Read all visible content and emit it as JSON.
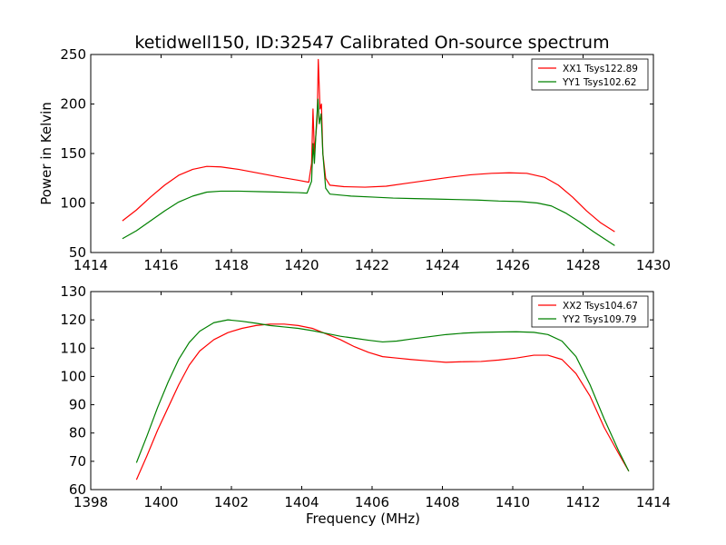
{
  "title": "ketidwell150, ID:32547 Calibrated On-source spectrum",
  "chart_data": [
    {
      "type": "line",
      "title": "ketidwell150, ID:32547 Calibrated On-source spectrum",
      "xlabel": "",
      "ylabel": "Power in Kelvin",
      "xlim": [
        1414,
        1430
      ],
      "ylim": [
        50,
        250
      ],
      "xticks": [
        1414,
        1416,
        1418,
        1420,
        1422,
        1424,
        1426,
        1428,
        1430
      ],
      "yticks": [
        50,
        100,
        150,
        200,
        250
      ],
      "grid": false,
      "legend_position": "top-right",
      "series": [
        {
          "name": "XX1 Tsys122.89",
          "color": "#ff0000",
          "points": [
            [
              1414.9,
              82
            ],
            [
              1415.3,
              93
            ],
            [
              1415.7,
              106
            ],
            [
              1416.1,
              118
            ],
            [
              1416.5,
              128
            ],
            [
              1416.9,
              134
            ],
            [
              1417.3,
              137
            ],
            [
              1417.7,
              136.5
            ],
            [
              1418.2,
              134
            ],
            [
              1418.8,
              130
            ],
            [
              1419.4,
              126
            ],
            [
              1419.9,
              123
            ],
            [
              1420.2,
              121
            ],
            [
              1420.28,
              140
            ],
            [
              1420.32,
              195
            ],
            [
              1420.36,
              150
            ],
            [
              1420.4,
              168
            ],
            [
              1420.44,
              185
            ],
            [
              1420.47,
              245
            ],
            [
              1420.52,
              195
            ],
            [
              1420.56,
              200
            ],
            [
              1420.6,
              150
            ],
            [
              1420.68,
              125
            ],
            [
              1420.8,
              118
            ],
            [
              1421.2,
              116.5
            ],
            [
              1421.8,
              116
            ],
            [
              1422.4,
              117
            ],
            [
              1423.0,
              120
            ],
            [
              1423.6,
              123
            ],
            [
              1424.2,
              126
            ],
            [
              1424.8,
              128.5
            ],
            [
              1425.4,
              130
            ],
            [
              1425.9,
              130.5
            ],
            [
              1426.4,
              130
            ],
            [
              1426.9,
              126
            ],
            [
              1427.3,
              118
            ],
            [
              1427.7,
              106
            ],
            [
              1428.1,
              92
            ],
            [
              1428.5,
              80
            ],
            [
              1428.9,
              71
            ]
          ]
        },
        {
          "name": "YY1 Tsys102.62",
          "color": "#008000",
          "points": [
            [
              1414.9,
              64
            ],
            [
              1415.3,
              72
            ],
            [
              1415.7,
              82
            ],
            [
              1416.1,
              92
            ],
            [
              1416.5,
              101
            ],
            [
              1416.9,
              107
            ],
            [
              1417.3,
              111
            ],
            [
              1417.7,
              112
            ],
            [
              1418.2,
              112
            ],
            [
              1418.8,
              111.5
            ],
            [
              1419.4,
              111
            ],
            [
              1419.9,
              110.5
            ],
            [
              1420.15,
              110
            ],
            [
              1420.28,
              122
            ],
            [
              1420.32,
              160
            ],
            [
              1420.36,
              140
            ],
            [
              1420.41,
              175
            ],
            [
              1420.46,
              205
            ],
            [
              1420.5,
              180
            ],
            [
              1420.55,
              190
            ],
            [
              1420.6,
              150
            ],
            [
              1420.68,
              115
            ],
            [
              1420.8,
              109
            ],
            [
              1421.4,
              107
            ],
            [
              1422.0,
              106
            ],
            [
              1422.6,
              105
            ],
            [
              1423.2,
              104.5
            ],
            [
              1423.8,
              104
            ],
            [
              1424.4,
              103.5
            ],
            [
              1425.0,
              103
            ],
            [
              1425.6,
              102
            ],
            [
              1426.2,
              101.5
            ],
            [
              1426.7,
              100
            ],
            [
              1427.1,
              97
            ],
            [
              1427.5,
              90
            ],
            [
              1427.9,
              81
            ],
            [
              1428.3,
              71
            ],
            [
              1428.6,
              64
            ],
            [
              1428.9,
              57
            ]
          ]
        }
      ]
    },
    {
      "type": "line",
      "title": "",
      "xlabel": "Frequency (MHz)",
      "ylabel": "",
      "xlim": [
        1398,
        1414
      ],
      "ylim": [
        60,
        130
      ],
      "xticks": [
        1398,
        1400,
        1402,
        1404,
        1406,
        1408,
        1410,
        1412,
        1414
      ],
      "yticks": [
        60,
        70,
        80,
        90,
        100,
        110,
        120,
        130
      ],
      "grid": false,
      "legend_position": "top-right",
      "series": [
        {
          "name": "XX2 Tsys104.67",
          "color": "#ff0000",
          "points": [
            [
              1399.3,
              63.5
            ],
            [
              1399.6,
              72
            ],
            [
              1399.9,
              81
            ],
            [
              1400.2,
              89
            ],
            [
              1400.5,
              97
            ],
            [
              1400.8,
              104
            ],
            [
              1401.1,
              109
            ],
            [
              1401.5,
              113
            ],
            [
              1401.9,
              115.5
            ],
            [
              1402.3,
              117
            ],
            [
              1402.7,
              118
            ],
            [
              1403.1,
              118.5
            ],
            [
              1403.5,
              118.5
            ],
            [
              1403.9,
              118
            ],
            [
              1404.3,
              117
            ],
            [
              1404.7,
              115
            ],
            [
              1405.1,
              113
            ],
            [
              1405.5,
              110.5
            ],
            [
              1405.9,
              108.5
            ],
            [
              1406.3,
              107
            ],
            [
              1406.7,
              106.5
            ],
            [
              1407.1,
              106
            ],
            [
              1407.6,
              105.5
            ],
            [
              1408.1,
              105
            ],
            [
              1408.6,
              105.2
            ],
            [
              1409.1,
              105.3
            ],
            [
              1409.6,
              105.8
            ],
            [
              1410.1,
              106.5
            ],
            [
              1410.6,
              107.5
            ],
            [
              1411.0,
              107.5
            ],
            [
              1411.4,
              106
            ],
            [
              1411.8,
              101
            ],
            [
              1412.2,
              93
            ],
            [
              1412.6,
              82
            ],
            [
              1413.0,
              73
            ],
            [
              1413.3,
              66.5
            ]
          ]
        },
        {
          "name": "YY2 Tsys109.79",
          "color": "#008000",
          "points": [
            [
              1399.3,
              69.5
            ],
            [
              1399.6,
              79
            ],
            [
              1399.9,
              89
            ],
            [
              1400.2,
              98
            ],
            [
              1400.5,
              106
            ],
            [
              1400.8,
              112
            ],
            [
              1401.1,
              116
            ],
            [
              1401.5,
              119
            ],
            [
              1401.9,
              120
            ],
            [
              1402.3,
              119.5
            ],
            [
              1402.7,
              118.8
            ],
            [
              1403.1,
              118
            ],
            [
              1403.5,
              117.5
            ],
            [
              1403.9,
              117
            ],
            [
              1404.3,
              116.2
            ],
            [
              1404.7,
              115.2
            ],
            [
              1405.1,
              114.2
            ],
            [
              1405.5,
              113.5
            ],
            [
              1405.9,
              112.8
            ],
            [
              1406.3,
              112.2
            ],
            [
              1406.7,
              112.5
            ],
            [
              1407.1,
              113.2
            ],
            [
              1407.6,
              114
            ],
            [
              1408.1,
              114.8
            ],
            [
              1408.6,
              115.3
            ],
            [
              1409.1,
              115.6
            ],
            [
              1409.6,
              115.7
            ],
            [
              1410.1,
              115.8
            ],
            [
              1410.6,
              115.6
            ],
            [
              1411.0,
              114.8
            ],
            [
              1411.4,
              112.5
            ],
            [
              1411.8,
              107
            ],
            [
              1412.2,
              97
            ],
            [
              1412.6,
              85
            ],
            [
              1413.0,
              74
            ],
            [
              1413.3,
              66.5
            ]
          ]
        }
      ]
    }
  ]
}
